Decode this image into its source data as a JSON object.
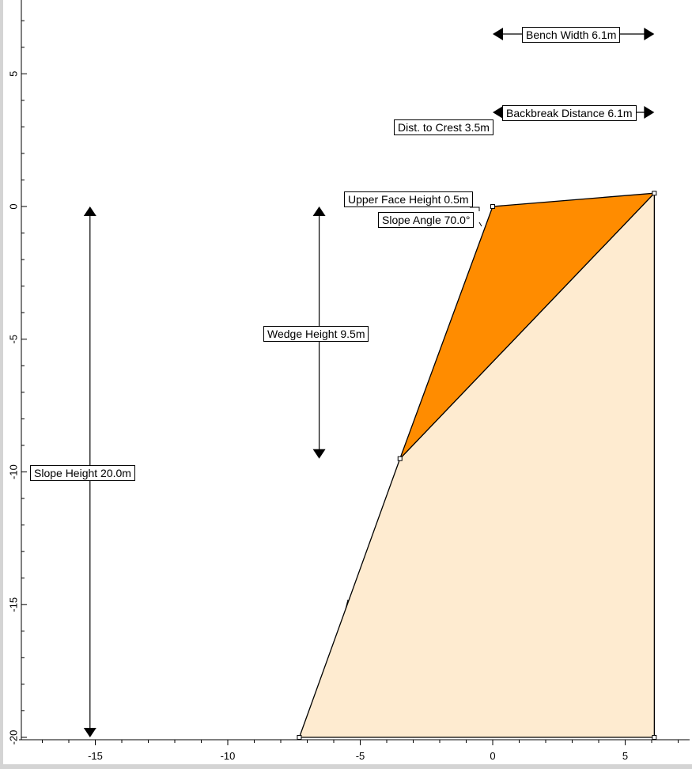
{
  "colors": {
    "wedge": "#ff8c00",
    "slope": "#feebd0",
    "line": "#000000",
    "strip": "#d4d4d4"
  },
  "labels": {
    "bench_width": "Bench Width 6.1m",
    "backbreak_distance": "Backbreak Distance 6.1m",
    "dist_to_crest": "Dist. to Crest 3.5m",
    "upper_face_height": "Upper Face Height 0.5m",
    "slope_angle": "Slope Angle 70.0°",
    "wedge_height": "Wedge Height 9.5m",
    "slope_height": "Slope Height 20.0m"
  },
  "chart_data": {
    "type": "diagram",
    "x_ticks": [
      "-15",
      "-10",
      "-5",
      "0",
      "5"
    ],
    "y_ticks": [
      "5",
      "0",
      "-5",
      "-10",
      "-15",
      "-20"
    ],
    "xlim": [
      -17.5,
      7.5
    ],
    "ylim": [
      -20,
      7.7
    ],
    "slope_toe": [
      -7.3,
      -20
    ],
    "face_break": [
      -3.5,
      -9.5
    ],
    "crest": [
      0,
      0
    ],
    "backbreak_point": [
      6.1,
      0.5
    ],
    "bottom_right": [
      6.1,
      -20
    ],
    "wedge_height": 9.5,
    "slope_height": 20.0,
    "bench_width": 6.1,
    "backbreak_distance": 6.1,
    "dist_to_crest": 3.5,
    "upper_face_height": 0.5,
    "slope_angle": 70.0
  }
}
